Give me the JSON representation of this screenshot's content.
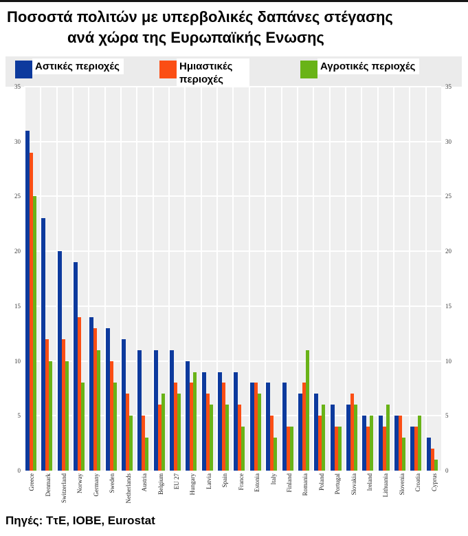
{
  "title": {
    "line1": "Ποσοστά πολιτών με υπερβολικές δαπάνες στέγασης",
    "line2": "ανά χώρα της Ευρωπαϊκής Ενωσης"
  },
  "footer": {
    "source": "Πηγές: ΤτΕ, ΙΟΒΕ, Eurostat"
  },
  "colors": {
    "urban": "#0d3a9d",
    "semi_urban": "#fb4e14",
    "rural": "#69b317",
    "plot_background": "#efefef",
    "gridline": "#ffffff",
    "legend_band": "#ebebeb"
  },
  "chart_data": {
    "type": "bar",
    "title": "Ποσοστά πολιτών με υπερβολικές δαπάνες στέγασης ανά χώρα της Ευρωπαϊκής Ενωσης",
    "xlabel": "",
    "ylabel": "",
    "ylim": [
      0,
      35
    ],
    "yticks": [
      0,
      5,
      10,
      15,
      20,
      25,
      30,
      35
    ],
    "grid": true,
    "legend_position": "top",
    "categories": [
      "Greece",
      "Denmark",
      "Switzerland",
      "Norway",
      "Germany",
      "Sweden",
      "Netherlands",
      "Austria",
      "Belgium",
      "EU 27",
      "Hungary",
      "Latvia",
      "Spain",
      "France",
      "Estonia",
      "Italy",
      "Finland",
      "Romania",
      "Poland",
      "Portugal",
      "Slovakia",
      "Ireland",
      "Lithuania",
      "Slovenia",
      "Croatia",
      "Cyprus"
    ],
    "series": [
      {
        "name": "Αστικές περιοχές",
        "key": "urban",
        "color": "#0d3a9d",
        "values": [
          31,
          23,
          20,
          19,
          14,
          13,
          12,
          11,
          11,
          11,
          10,
          9,
          9,
          9,
          8,
          8,
          8,
          7,
          7,
          6,
          6,
          5,
          5,
          5,
          4,
          3
        ]
      },
      {
        "name": "Ημιαστικές περιοχές",
        "key": "semi-urban",
        "color": "#fb4e14",
        "values": [
          29,
          12,
          12,
          14,
          13,
          10,
          7,
          5,
          6,
          8,
          8,
          7,
          8,
          6,
          8,
          5,
          4,
          8,
          5,
          4,
          7,
          4,
          4,
          5,
          4,
          2
        ]
      },
      {
        "name": "Αγροτικές περιοχές",
        "key": "rural",
        "color": "#69b317",
        "values": [
          25,
          10,
          10,
          8,
          11,
          8,
          5,
          3,
          7,
          7,
          9,
          6,
          6,
          4,
          7,
          3,
          4,
          11,
          6,
          4,
          6,
          5,
          6,
          3,
          5,
          1
        ]
      }
    ]
  }
}
